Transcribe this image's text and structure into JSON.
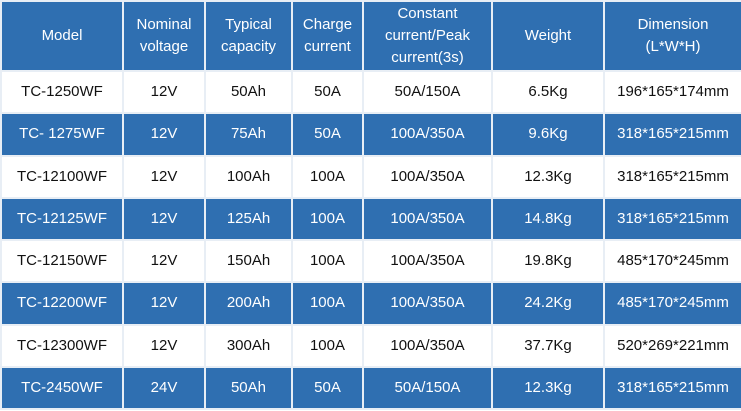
{
  "table": {
    "header": [
      "Model",
      "Nominal\nvoltage",
      "Typical\ncapacity",
      "Charge\ncurrent",
      "Constant\ncurrent/Peak\ncurrent(3s)",
      "Weight",
      "Dimension\n(L*W*H)"
    ],
    "rows": [
      [
        "TC-1250WF",
        "12V",
        "50Ah",
        "50A",
        "50A/150A",
        "6.5Kg",
        "196*165*174mm"
      ],
      [
        "TC- 1275WF",
        "12V",
        "75Ah",
        "50A",
        "100A/350A",
        "9.6Kg",
        "318*165*215mm"
      ],
      [
        "TC-12100WF",
        "12V",
        "100Ah",
        "100A",
        "100A/350A",
        "12.3Kg",
        "318*165*215mm"
      ],
      [
        "TC-12125WF",
        "12V",
        "125Ah",
        "100A",
        "100A/350A",
        "14.8Kg",
        "318*165*215mm"
      ],
      [
        "TC-12150WF",
        "12V",
        "150Ah",
        "100A",
        "100A/350A",
        "19.8Kg",
        "485*170*245mm"
      ],
      [
        "TC-12200WF",
        "12V",
        "200Ah",
        "100A",
        "100A/350A",
        "24.2Kg",
        "485*170*245mm"
      ],
      [
        "TC-12300WF",
        "12V",
        "300Ah",
        "100A",
        "100A/350A",
        "37.7Kg",
        "520*269*221mm"
      ],
      [
        "TC-2450WF",
        "24V",
        "50Ah",
        "50A",
        "50A/150A",
        "12.3Kg",
        "318*165*215mm"
      ]
    ]
  }
}
